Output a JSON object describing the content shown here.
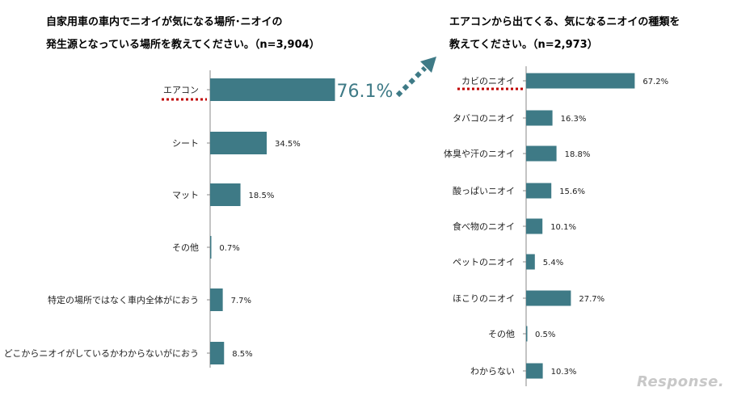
{
  "colors": {
    "bar": "#3e7a86",
    "highlight": "#c00000",
    "arrow": "#3e7a86"
  },
  "left_title": {
    "line1": "自家用車の車内でニオイが気になる場所･ニオイの",
    "line2": "発生源となっている場所を教えてください。（n=3,904）"
  },
  "right_title": {
    "line1": "エアコンから出てくる、気になるニオイの種類を",
    "line2": "教えてください。（n=2,973）"
  },
  "chart_data": [
    {
      "type": "bar",
      "orientation": "horizontal",
      "title": "自家用車の車内でニオイが気になる場所･ニオイの発生源となっている場所を教えてください。（n=3,904）",
      "categories": [
        "エアコン",
        "シート",
        "マット",
        "その他",
        "特定の場所ではなく車内全体がにおう",
        "どこからニオイがしているかわからないがにおう"
      ],
      "values": [
        76.1,
        34.5,
        18.5,
        0.7,
        7.7,
        8.5
      ],
      "labels": [
        "76.1%",
        "34.5%",
        "18.5%",
        "0.7%",
        "7.7%",
        "8.5%"
      ],
      "highlight_index": 0
    },
    {
      "type": "bar",
      "orientation": "horizontal",
      "title": "エアコンから出てくる、気になるニオイの種類を教えてください。（n=2,973）",
      "categories": [
        "カビのニオイ",
        "タバコのニオイ",
        "体臭や汗のニオイ",
        "酸っぱいニオイ",
        "食べ物のニオイ",
        "ペットのニオイ",
        "ほこりのニオイ",
        "その他",
        "わからない"
      ],
      "values": [
        67.2,
        16.3,
        18.8,
        15.6,
        10.1,
        5.4,
        27.7,
        0.5,
        10.3
      ],
      "labels": [
        "67.2%",
        "16.3%",
        "18.8%",
        "15.6%",
        "10.1%",
        "5.4%",
        "27.7%",
        "0.5%",
        "10.3%"
      ],
      "highlight_index": 0
    }
  ],
  "logo": {
    "text": "Response."
  }
}
